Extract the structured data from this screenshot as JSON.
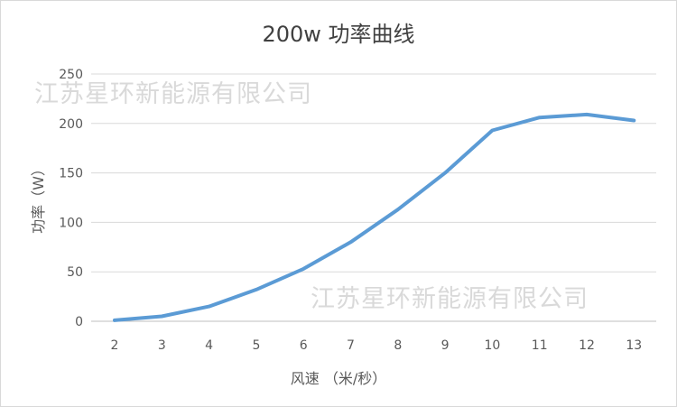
{
  "chart_data": {
    "type": "line",
    "title": "200w 功率曲线",
    "xlabel": "风速 （米/秒）",
    "ylabel": "功率（W）",
    "categories": [
      "2",
      "3",
      "4",
      "5",
      "6",
      "7",
      "8",
      "9",
      "10",
      "11",
      "12",
      "13"
    ],
    "series": [
      {
        "values": [
          1,
          5,
          15,
          32,
          53,
          80,
          113,
          150,
          193,
          206,
          209,
          203
        ]
      }
    ],
    "ylim": [
      0,
      250
    ],
    "yticks": [
      0,
      50,
      100,
      150,
      200,
      250
    ],
    "grid": true,
    "colors": {
      "line": "#5b9bd5",
      "grid": "#d9d9d9",
      "text": "#595959"
    }
  },
  "watermarks": [
    "江苏星环新能源有限公司",
    "江苏星环新能源有限公司"
  ]
}
